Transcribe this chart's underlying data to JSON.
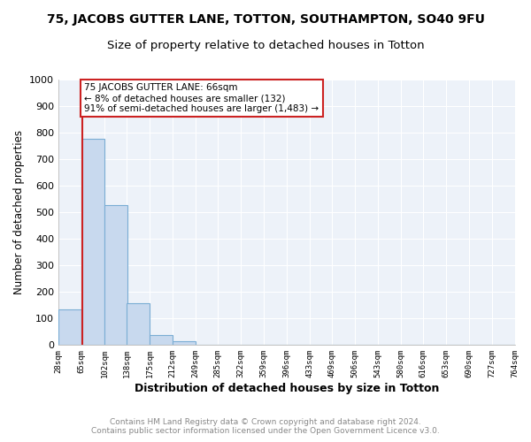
{
  "title1": "75, JACOBS GUTTER LANE, TOTTON, SOUTHAMPTON, SO40 9FU",
  "title2": "Size of property relative to detached houses in Totton",
  "xlabel": "Distribution of detached houses by size in Totton",
  "ylabel": "Number of detached properties",
  "bin_edges": [
    28,
    65,
    102,
    138,
    175,
    212,
    249,
    285,
    322,
    359,
    396,
    433,
    469,
    506,
    543,
    580,
    616,
    653,
    690,
    727,
    764
  ],
  "bin_heights": [
    132,
    778,
    527,
    158,
    37,
    12,
    0,
    0,
    0,
    0,
    0,
    0,
    0,
    0,
    0,
    0,
    0,
    0,
    0,
    0
  ],
  "bar_color": "#c8d9ee",
  "bar_edge_color": "#7aadd4",
  "vline_x": 66,
  "vline_color": "#cc2222",
  "annotation_line1": "75 JACOBS GUTTER LANE: 66sqm",
  "annotation_line2": "← 8% of detached houses are smaller (132)",
  "annotation_line3": "91% of semi-detached houses are larger (1,483) →",
  "annotation_box_color": "#cc2222",
  "ylim": [
    0,
    1000
  ],
  "yticks": [
    0,
    100,
    200,
    300,
    400,
    500,
    600,
    700,
    800,
    900,
    1000
  ],
  "background_color": "#edf2f9",
  "grid_color": "#ffffff",
  "footer_text": "Contains HM Land Registry data © Crown copyright and database right 2024.\nContains public sector information licensed under the Open Government Licence v3.0.",
  "title1_fontsize": 10,
  "title2_fontsize": 9.5,
  "xlabel_fontsize": 9,
  "ylabel_fontsize": 8.5,
  "tick_labels": [
    "28sqm",
    "65sqm",
    "102sqm",
    "138sqm",
    "175sqm",
    "212sqm",
    "249sqm",
    "285sqm",
    "322sqm",
    "359sqm",
    "396sqm",
    "433sqm",
    "469sqm",
    "506sqm",
    "543sqm",
    "580sqm",
    "616sqm",
    "653sqm",
    "690sqm",
    "727sqm",
    "764sqm"
  ]
}
